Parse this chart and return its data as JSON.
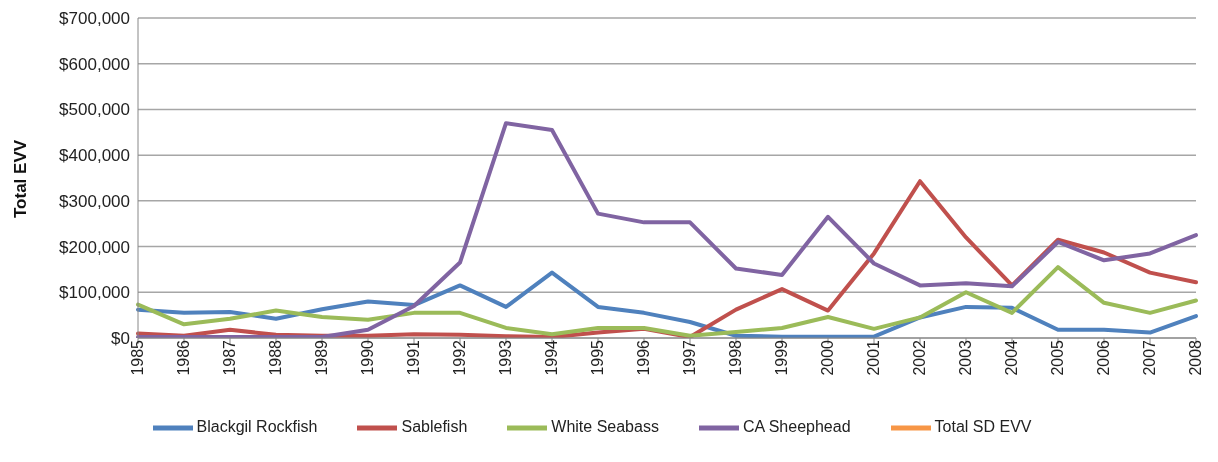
{
  "chart_data": {
    "type": "line",
    "ylabel": "Total EVV",
    "categories": [
      "1985",
      "1986",
      "1987",
      "1988",
      "1989",
      "1990",
      "1991",
      "1992",
      "1993",
      "1994",
      "1995",
      "1996",
      "1997",
      "1998",
      "1999",
      "2000",
      "2001",
      "2002",
      "2003",
      "2004",
      "2005",
      "2006",
      "2007",
      "2008"
    ],
    "series": [
      {
        "name": "Blackgil Rockfish",
        "color": "#4f81bd",
        "values": [
          62000,
          55000,
          57000,
          42000,
          63000,
          80000,
          72000,
          115000,
          68000,
          143000,
          68000,
          55000,
          35000,
          5000,
          3000,
          3000,
          3000,
          45000,
          68000,
          66000,
          18000,
          18000,
          12000,
          48000
        ]
      },
      {
        "name": "Sablefish",
        "color": "#c0504d",
        "values": [
          10000,
          5000,
          18000,
          7000,
          5000,
          5000,
          8000,
          7000,
          4000,
          2000,
          12000,
          20000,
          2000,
          62000,
          107000,
          60000,
          185000,
          343000,
          220000,
          115000,
          215000,
          187000,
          143000,
          122000
        ]
      },
      {
        "name": "White Seabass",
        "color": "#9bbb59",
        "values": [
          73000,
          30000,
          42000,
          60000,
          46000,
          40000,
          55000,
          55000,
          22000,
          8000,
          22000,
          22000,
          5000,
          13000,
          22000,
          46000,
          20000,
          45000,
          100000,
          55000,
          155000,
          77000,
          55000,
          82000
        ]
      },
      {
        "name": "CA Sheephead",
        "color": "#8064a2",
        "values": [
          2000,
          2000,
          2000,
          2000,
          2000,
          18000,
          70000,
          165000,
          470000,
          455000,
          272000,
          253000,
          253000,
          152000,
          138000,
          265000,
          163000,
          115000,
          120000,
          113000,
          210000,
          170000,
          185000,
          225000
        ]
      },
      {
        "name": "Total SD EVV",
        "color": "#f79646",
        "values": [
          null,
          null,
          null,
          null,
          null,
          null,
          null,
          null,
          null,
          null,
          null,
          null,
          null,
          null,
          null,
          null,
          null,
          null,
          null,
          null,
          null,
          null,
          null,
          null
        ]
      }
    ],
    "ylim": [
      0,
      700000
    ],
    "yticks": [
      {
        "value": 0,
        "label": "$0"
      },
      {
        "value": 100000,
        "label": "$100,000"
      },
      {
        "value": 200000,
        "label": "$200,000"
      },
      {
        "value": 300000,
        "label": "$300,000"
      },
      {
        "value": 400000,
        "label": "$400,000"
      },
      {
        "value": 500000,
        "label": "$500,000"
      },
      {
        "value": 600000,
        "label": "$600,000"
      },
      {
        "value": 700000,
        "label": "$700,000"
      }
    ],
    "grid": "y",
    "legend": "bottom",
    "marker": "none",
    "line_style": "solid"
  }
}
